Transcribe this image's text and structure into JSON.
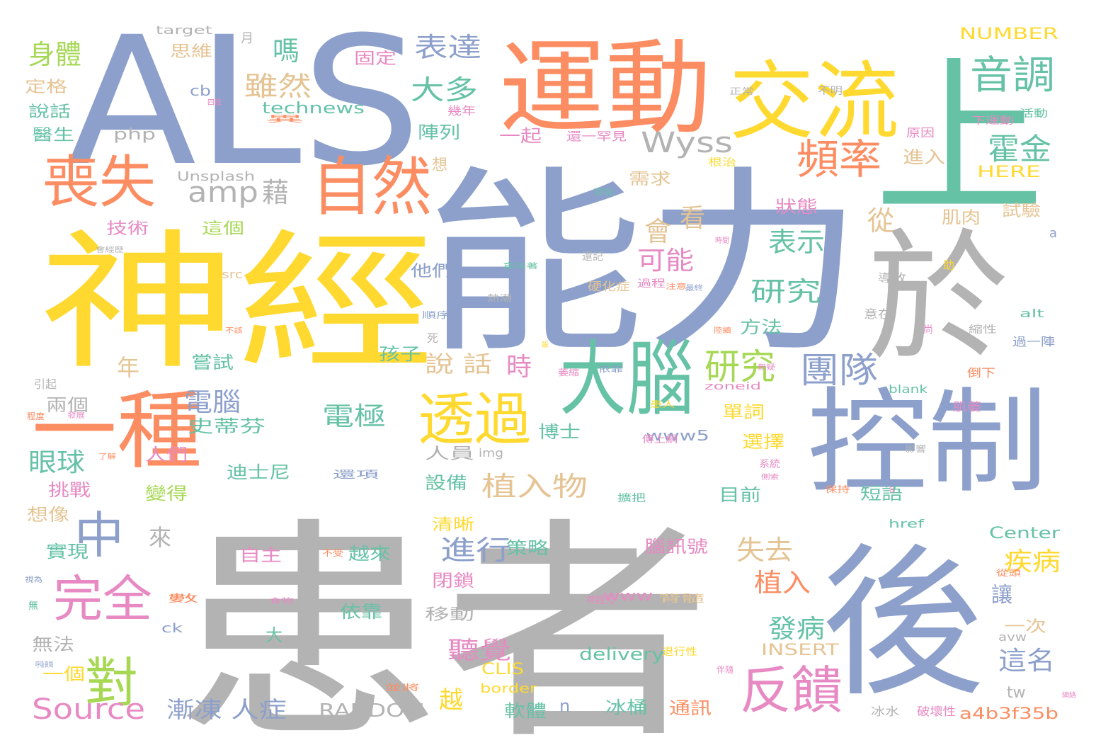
{
  "cloud": {
    "colors": {
      "gray": "#b3b3b3",
      "blue": "#8da0cb",
      "orange": "#fc8d62",
      "yellow": "#ffd92f",
      "green": "#66c2a5",
      "lime": "#a6d854",
      "pink": "#e78ac3",
      "tan": "#e5c494"
    },
    "words": [
      {
        "text": "患者",
        "color": "gray"
      },
      {
        "text": "能力",
        "color": "blue"
      },
      {
        "text": "ALS",
        "color": "blue"
      },
      {
        "text": "神經",
        "color": "yellow"
      },
      {
        "text": "運動",
        "color": "orange"
      },
      {
        "text": "交流",
        "color": "yellow"
      },
      {
        "text": "上",
        "color": "green"
      },
      {
        "text": "於",
        "color": "gray"
      },
      {
        "text": "控制",
        "color": "blue"
      },
      {
        "text": "後",
        "color": "blue"
      },
      {
        "text": "一種",
        "color": "orange"
      },
      {
        "text": "大腦",
        "color": "green"
      },
      {
        "text": "自然",
        "color": "orange"
      },
      {
        "text": "喪失",
        "color": "orange"
      },
      {
        "text": "透過",
        "color": "yellow"
      },
      {
        "text": "對",
        "color": "lime"
      },
      {
        "text": "中",
        "color": "blue"
      },
      {
        "text": "完全",
        "color": "pink"
      },
      {
        "text": "反饋",
        "color": "pink"
      },
      {
        "text": "頻率",
        "color": "orange"
      },
      {
        "text": "音調",
        "color": "green"
      },
      {
        "text": "研究",
        "color": "lime"
      },
      {
        "text": "團隊",
        "color": "blue"
      },
      {
        "text": "Source",
        "color": "pink"
      },
      {
        "text": "amp",
        "color": "gray"
      },
      {
        "text": "Wyss",
        "color": "gray"
      },
      {
        "text": "霍金",
        "color": "green"
      },
      {
        "text": "身體",
        "color": "lime"
      },
      {
        "text": "表達",
        "color": "blue"
      },
      {
        "text": "雖然",
        "color": "tan"
      },
      {
        "text": "大多",
        "color": "green"
      },
      {
        "text": "嗎",
        "color": "green"
      },
      {
        "text": "藉",
        "color": "gray"
      },
      {
        "text": "植入物",
        "color": "tan"
      },
      {
        "text": "進行",
        "color": "blue"
      },
      {
        "text": "失去",
        "color": "tan"
      },
      {
        "text": "植入",
        "color": "orange"
      },
      {
        "text": "疾病",
        "color": "yellow"
      },
      {
        "text": "發病",
        "color": "green"
      },
      {
        "text": "這名",
        "color": "blue"
      },
      {
        "text": "電極",
        "color": "green"
      },
      {
        "text": "眼球",
        "color": "green"
      },
      {
        "text": "電腦",
        "color": "blue"
      },
      {
        "text": "表示",
        "color": "green"
      },
      {
        "text": "研究",
        "color": "green"
      },
      {
        "text": "可能",
        "color": "pink"
      },
      {
        "text": "會",
        "color": "tan"
      },
      {
        "text": "看",
        "color": "tan"
      },
      {
        "text": "從",
        "color": "tan"
      },
      {
        "text": "時",
        "color": "pink"
      },
      {
        "text": "說 話",
        "color": "tan"
      },
      {
        "text": "年",
        "color": "tan"
      },
      {
        "text": "來",
        "color": "gray"
      },
      {
        "text": "聽覺",
        "color": "pink"
      },
      {
        "text": "越",
        "color": "yellow"
      },
      {
        "text": "漸凍 人症",
        "color": "blue"
      },
      {
        "text": "RANDOM",
        "color": "gray"
      },
      {
        "text": "a4b3f35b",
        "color": "orange"
      },
      {
        "text": "NUMBER",
        "color": "yellow"
      },
      {
        "text": "HERE",
        "color": "yellow"
      },
      {
        "text": "Center",
        "color": "green"
      },
      {
        "text": "INSERT",
        "color": "tan"
      },
      {
        "text": "delivery",
        "color": "green"
      },
      {
        "text": "www5",
        "color": "blue"
      },
      {
        "text": "technews",
        "color": "green"
      },
      {
        "text": "php",
        "color": "gray"
      },
      {
        "text": "cb",
        "color": "blue"
      },
      {
        "text": "Unsplash",
        "color": "gray"
      },
      {
        "text": "target",
        "color": "gray"
      },
      {
        "text": "月",
        "color": "gray"
      },
      {
        "text": "思維",
        "color": "tan"
      },
      {
        "text": "固定",
        "color": "pink"
      },
      {
        "text": "定格",
        "color": "tan"
      },
      {
        "text": "說話",
        "color": "green"
      },
      {
        "text": "醫生",
        "color": "green"
      },
      {
        "text": "陣列",
        "color": "green"
      },
      {
        "text": "一起",
        "color": "pink"
      },
      {
        "text": "想",
        "color": "tan"
      },
      {
        "text": "需求",
        "color": "tan"
      },
      {
        "text": "狀態",
        "color": "pink"
      },
      {
        "text": "肌肉",
        "color": "tan"
      },
      {
        "text": "進入",
        "color": "tan"
      },
      {
        "text": "試驗",
        "color": "tan"
      },
      {
        "text": "技術",
        "color": "pink"
      },
      {
        "text": "這個",
        "color": "lime"
      },
      {
        "text": "他們",
        "color": "blue"
      },
      {
        "text": "孩子",
        "color": "green"
      },
      {
        "text": "嘗試",
        "color": "green"
      },
      {
        "text": "方法",
        "color": "green"
      },
      {
        "text": "史蒂芬",
        "color": "green"
      },
      {
        "text": "兩個",
        "color": "gray"
      },
      {
        "text": "單詞",
        "color": "yellow"
      },
      {
        "text": "博士",
        "color": "green"
      },
      {
        "text": "選擇",
        "color": "yellow"
      },
      {
        "text": "人們",
        "color": "pink"
      },
      {
        "text": "挑戰",
        "color": "pink"
      },
      {
        "text": "變得",
        "color": "lime"
      },
      {
        "text": "想像",
        "color": "tan"
      },
      {
        "text": "迪士尼",
        "color": "green"
      },
      {
        "text": "設備",
        "color": "green"
      },
      {
        "text": "人員",
        "color": "gray"
      },
      {
        "text": "目前",
        "color": "green"
      },
      {
        "text": "短語",
        "color": "green"
      },
      {
        "text": "實現",
        "color": "green"
      },
      {
        "text": "策略",
        "color": "green"
      },
      {
        "text": "清晰",
        "color": "yellow"
      },
      {
        "text": "腦訊號",
        "color": "pink"
      },
      {
        "text": "自主",
        "color": "pink"
      },
      {
        "text": "越來",
        "color": "green"
      },
      {
        "text": "閉鎖",
        "color": "pink"
      },
      {
        "text": "依靠",
        "color": "green"
      },
      {
        "text": "移動",
        "color": "gray"
      },
      {
        "text": "無法",
        "color": "gray"
      },
      {
        "text": "一個",
        "color": "yellow"
      },
      {
        "text": "大",
        "color": "green"
      },
      {
        "text": "一次",
        "color": "tan"
      },
      {
        "text": "讓",
        "color": "blue"
      },
      {
        "text": "tw",
        "color": "gray"
      },
      {
        "text": "CLIS",
        "color": "yellow"
      },
      {
        "text": "border",
        "color": "yellow"
      },
      {
        "text": "軟體",
        "color": "green"
      },
      {
        "text": "冰桶",
        "color": "green"
      },
      {
        "text": "通訊",
        "color": "orange"
      },
      {
        "text": "n",
        "color": "blue"
      },
      {
        "text": "www",
        "color": "pink"
      },
      {
        "text": "img",
        "color": "gray"
      },
      {
        "text": "avw",
        "color": "gray"
      },
      {
        "text": "src",
        "color": "tan"
      },
      {
        "text": "ck",
        "color": "blue"
      },
      {
        "text": "href",
        "color": "green"
      },
      {
        "text": "alt",
        "color": "green"
      },
      {
        "text": "blank",
        "color": "green"
      },
      {
        "text": "zoneid",
        "color": "pink"
      },
      {
        "text": "a",
        "color": "blue"
      },
      {
        "text": "死",
        "color": "gray"
      },
      {
        "text": "無",
        "color": "green"
      },
      {
        "text": "引起",
        "color": "gray"
      },
      {
        "text": "下運動",
        "color": "pink"
      },
      {
        "text": "活動",
        "color": "green"
      },
      {
        "text": "原因",
        "color": "pink"
      },
      {
        "text": "根治",
        "color": "yellow"
      },
      {
        "text": "助",
        "color": "yellow"
      },
      {
        "text": "導致",
        "color": "gray"
      },
      {
        "text": "意在",
        "color": "gray"
      },
      {
        "text": "尚",
        "color": "pink"
      },
      {
        "text": "縮性",
        "color": "gray"
      },
      {
        "text": "過一陣",
        "color": "blue"
      },
      {
        "text": "倒下",
        "color": "orange"
      },
      {
        "text": "肌萎",
        "color": "pink"
      },
      {
        "text": "冰水",
        "color": "gray"
      },
      {
        "text": "破壞性",
        "color": "pink"
      },
      {
        "text": "還一罕見",
        "color": "pink"
      },
      {
        "text": "幾年",
        "color": "pink"
      },
      {
        "text": "不明",
        "color": "gray"
      },
      {
        "text": "正常",
        "color": "gray"
      },
      {
        "text": "硬化症",
        "color": "tan"
      },
      {
        "text": "過程",
        "color": "pink"
      },
      {
        "text": "注意",
        "color": "orange"
      },
      {
        "text": "順序",
        "color": "blue"
      },
      {
        "text": "熱潮",
        "color": "gray"
      },
      {
        "text": "還記",
        "color": "gray"
      },
      {
        "text": "退化",
        "color": "green"
      },
      {
        "text": "傳上網",
        "color": "pink"
      },
      {
        "text": "還項",
        "color": "blue"
      },
      {
        "text": "退行性",
        "color": "yellow"
      },
      {
        "text": "背髓",
        "color": "tan"
      },
      {
        "text": "神經元",
        "color": "pink"
      },
      {
        "text": "並將",
        "color": "orange"
      },
      {
        "text": "保持",
        "color": "orange"
      },
      {
        "text": "從頭",
        "color": "orange"
      },
      {
        "text": "數",
        "color": "orange"
      },
      {
        "text": "網絡",
        "color": "pink"
      },
      {
        "text": "依靠",
        "color": "blue"
      },
      {
        "text": "萎縮",
        "color": "pink"
      },
      {
        "text": "擴把",
        "color": "green"
      },
      {
        "text": "系統",
        "color": "pink"
      },
      {
        "text": "影響",
        "color": "gray"
      },
      {
        "text": "不受",
        "color": "orange"
      },
      {
        "text": "程度",
        "color": "orange"
      },
      {
        "text": "發展",
        "color": "pink"
      },
      {
        "text": "了解",
        "color": "orange"
      },
      {
        "text": "食物",
        "color": "pink"
      },
      {
        "text": "視為",
        "color": "blue"
      },
      {
        "text": "呼吸衰竭",
        "color": "blue"
      },
      {
        "text": "會經歷",
        "color": "gray"
      },
      {
        "text": "異",
        "color": "orange"
      },
      {
        "text": "四肢",
        "color": "pink"
      },
      {
        "text": "伴隨",
        "color": "pink"
      },
      {
        "text": "意味著",
        "color": "green"
      },
      {
        "text": "陸續",
        "color": "orange"
      },
      {
        "text": "無疑",
        "color": "pink"
      },
      {
        "text": "設",
        "color": "yellow"
      },
      {
        "text": "不該",
        "color": "orange"
      },
      {
        "text": "最終",
        "color": "blue"
      },
      {
        "text": "時間",
        "color": "pink"
      },
      {
        "text": "名",
        "color": "pink"
      },
      {
        "text": "患人",
        "color": "yellow"
      },
      {
        "text": "側索",
        "color": "pink"
      },
      {
        "text": "吞嚥",
        "color": "yellow"
      }
    ]
  }
}
